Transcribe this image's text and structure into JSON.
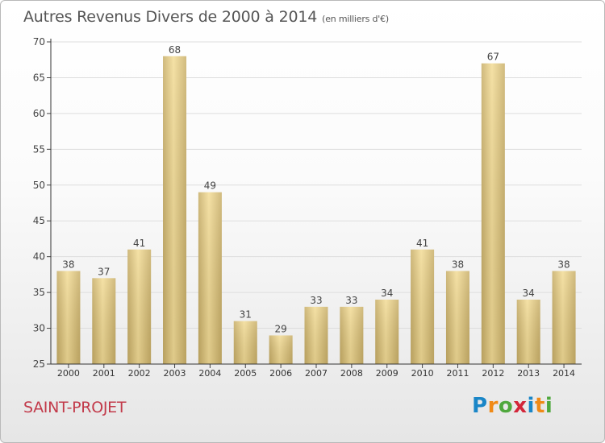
{
  "header": {
    "title": "Autres Revenus Divers de 2000 à 2014",
    "subtitle": "(en milliers d'€)"
  },
  "footer": {
    "commune": "SAINT-PROJET",
    "brand_letters": [
      {
        "ch": "P",
        "color": "#1a86c7"
      },
      {
        "ch": "r",
        "color": "#f08a16"
      },
      {
        "ch": "o",
        "color": "#4fa83d"
      },
      {
        "ch": "x",
        "color": "#d3263a"
      },
      {
        "ch": "i",
        "color": "#1a86c7"
      },
      {
        "ch": "t",
        "color": "#f08a16"
      },
      {
        "ch": "i",
        "color": "#4fa83d"
      }
    ]
  },
  "chart_data": {
    "type": "bar",
    "title": "Autres Revenus Divers de 2000 à 2014",
    "subtitle": "(en milliers d'€)",
    "categories": [
      "2000",
      "2001",
      "2002",
      "2003",
      "2004",
      "2005",
      "2006",
      "2007",
      "2008",
      "2009",
      "2010",
      "2011",
      "2012",
      "2013",
      "2014"
    ],
    "values": [
      38,
      37,
      41,
      68,
      49,
      31,
      29,
      33,
      33,
      34,
      41,
      38,
      67,
      34,
      38
    ],
    "yticks": [
      25,
      30,
      35,
      40,
      45,
      50,
      55,
      60,
      65,
      70
    ],
    "ylim": [
      25,
      70
    ],
    "grid": true,
    "bar_color": "#e2c77c"
  }
}
